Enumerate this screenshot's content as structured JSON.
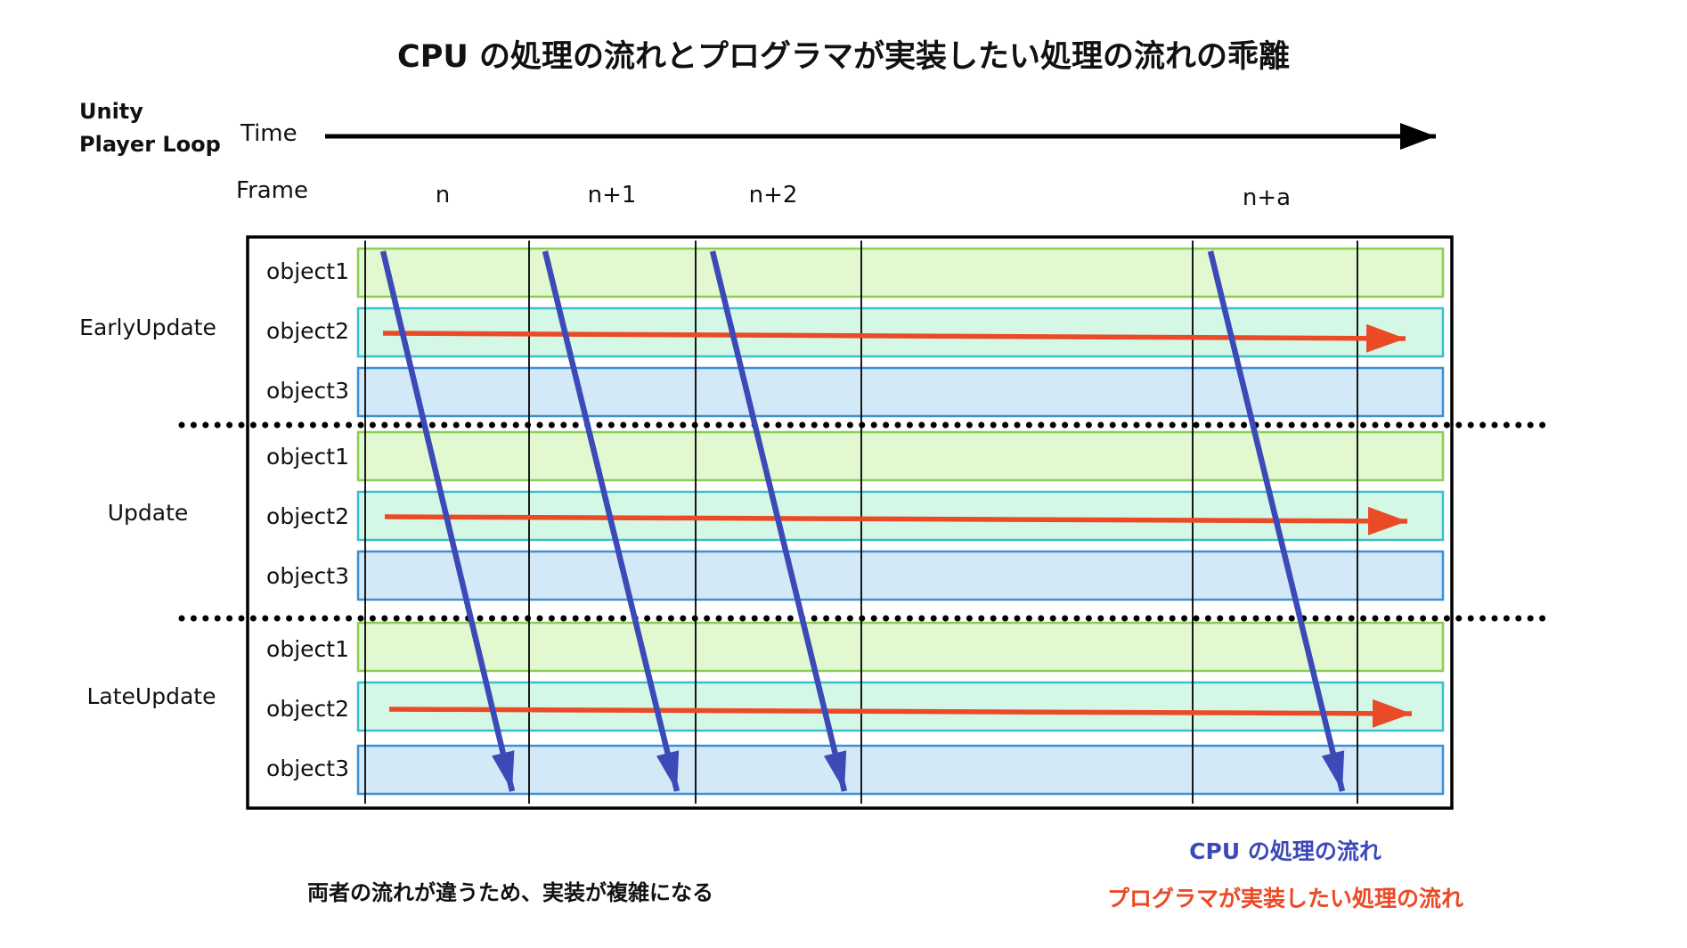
{
  "title": "CPU の処理の流れとプログラマが実装したい処理の流れの乖離",
  "header": {
    "loop_line1": "Unity",
    "loop_line2": "Player Loop",
    "time_label": "Time",
    "frame_label": "Frame"
  },
  "frames": [
    "n",
    "n+1",
    "n+2",
    "n+a"
  ],
  "groups": [
    {
      "name": "EarlyUpdate",
      "objects": [
        "object1",
        "object2",
        "object3"
      ]
    },
    {
      "name": "Update",
      "objects": [
        "object1",
        "object2",
        "object3"
      ]
    },
    {
      "name": "LateUpdate",
      "objects": [
        "object1",
        "object2",
        "object3"
      ]
    }
  ],
  "colors": {
    "object1_fill": "#e2f8d0",
    "object1_stroke": "#8ccd55",
    "object2_fill": "#d4f7e6",
    "object2_stroke": "#3bbfcf",
    "object3_fill": "#d3e9f8",
    "object3_stroke": "#3d8fd8",
    "cpu_arrow": "#3c4ab8",
    "programmer_arrow": "#ea4a26"
  },
  "legend": {
    "cpu_flow": "CPU の処理の流れ",
    "programmer_flow": "プログラマが実装したい処理の流れ"
  },
  "note": "両者の流れが違うため、実装が複雑になる"
}
